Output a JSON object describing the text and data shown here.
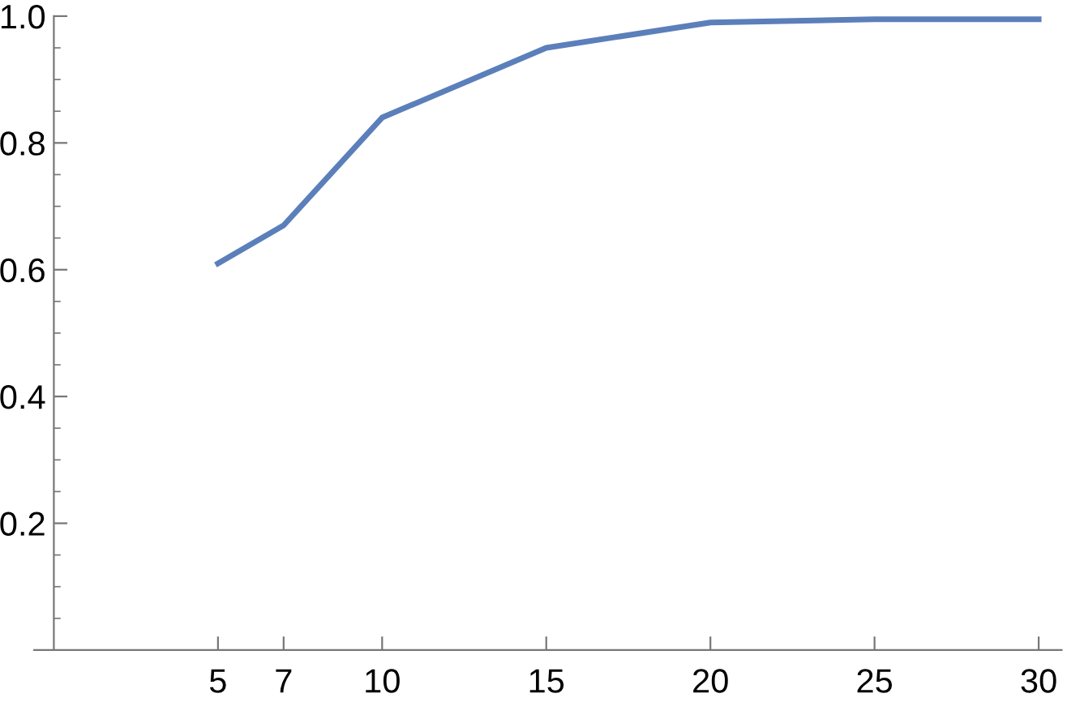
{
  "chart_data": {
    "type": "line",
    "x": [
      5,
      7,
      10,
      15,
      20,
      25,
      30
    ],
    "series": [
      {
        "color": "#5b7fba",
        "values": [
          0.61,
          0.67,
          0.84,
          0.95,
          0.99,
          0.995,
          0.995
        ]
      }
    ],
    "xlim": [
      -0.6,
      30.7
    ],
    "ylim": [
      0,
      1.0
    ],
    "xticks": [
      5,
      7,
      10,
      15,
      20,
      25,
      30
    ],
    "yticks": [
      {
        "value": 0.05,
        "label": null
      },
      {
        "value": 0.1,
        "label": null
      },
      {
        "value": 0.15,
        "label": null
      },
      0.2,
      {
        "value": 0.25,
        "label": null
      },
      {
        "value": 0.3,
        "label": null
      },
      {
        "value": 0.35,
        "label": null
      },
      0.4,
      {
        "value": 0.45,
        "label": null
      },
      {
        "value": 0.5,
        "label": null
      },
      {
        "value": 0.55,
        "label": null
      },
      0.6,
      {
        "value": 0.65,
        "label": null
      },
      {
        "value": 0.7,
        "label": null
      },
      {
        "value": 0.75,
        "label": null
      },
      0.8,
      {
        "value": 0.85,
        "label": null
      },
      {
        "value": 0.9,
        "label": null
      },
      {
        "value": 0.95,
        "label": null
      },
      {
        "value": 1.0,
        "label": "1.0"
      }
    ],
    "grid": false,
    "marker": "none",
    "line_style": "solid"
  }
}
